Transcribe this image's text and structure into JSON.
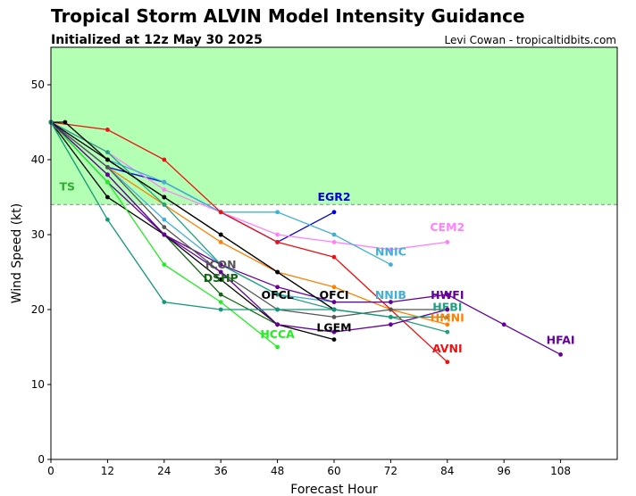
{
  "chart_data": {
    "type": "line",
    "title": "Tropical Storm ALVIN Model Intensity Guidance",
    "subtitle": "Initialized at 12z May 30 2025",
    "credit": "Levi Cowan - tropicaltidbits.com",
    "xlabel": "Forecast Hour",
    "ylabel": "Wind Speed (kt)",
    "xlim": [
      0,
      120
    ],
    "ylim": [
      0,
      55
    ],
    "xticks": [
      0,
      12,
      24,
      36,
      48,
      60,
      72,
      84,
      96,
      108
    ],
    "yticks": [
      0,
      10,
      20,
      30,
      40,
      50
    ],
    "bands": [
      {
        "name": "TS",
        "y0": 34,
        "y1": 55,
        "color": "#b3ffb3",
        "line_color": "#a0a0a0"
      }
    ],
    "series": [
      {
        "name": "EGR2",
        "color": "#0000dd",
        "x": [
          0,
          12,
          24,
          36,
          48,
          60
        ],
        "y": [
          45,
          39,
          37,
          33,
          29,
          33
        ],
        "label_x": 60,
        "label_y": 34.5
      },
      {
        "name": "CEM2",
        "color": "#ff80ff",
        "x": [
          0,
          12,
          24,
          36,
          48,
          60,
          72,
          84
        ],
        "y": [
          45,
          41,
          36,
          33,
          30,
          29,
          28,
          29
        ],
        "label_x": 84,
        "label_y": 30.5
      },
      {
        "name": "NNIC",
        "color": "#40b0d8",
        "x": [
          0,
          12,
          24,
          36,
          48,
          60,
          72
        ],
        "y": [
          45,
          40,
          37,
          33,
          33,
          30,
          26
        ],
        "label_x": 72,
        "label_y": 27.2
      },
      {
        "name": "AVNI",
        "color": "#ee1111",
        "x": [
          0,
          12,
          24,
          36,
          48,
          60,
          72,
          84
        ],
        "y": [
          45,
          44,
          40,
          33,
          29,
          27,
          20,
          13
        ],
        "label_x": 84,
        "label_y": 14.3
      },
      {
        "name": "HMNI",
        "color": "#ff7f00",
        "x": [
          0,
          12,
          24,
          36,
          48,
          60,
          72,
          84
        ],
        "y": [
          45,
          39,
          34,
          29,
          25,
          23,
          20,
          18
        ],
        "label_x": 84,
        "label_y": 18.4
      },
      {
        "name": "NNIB",
        "color": "#40b0d8",
        "x": [
          0,
          12,
          24,
          36,
          48,
          60,
          72
        ],
        "y": [
          45,
          39,
          32,
          26,
          22,
          21,
          21
        ],
        "label_x": 72,
        "label_y": 21.4
      },
      {
        "name": "HFBI",
        "color": "#20a080",
        "x": [
          0,
          12,
          24,
          36,
          48,
          60,
          72,
          84
        ],
        "y": [
          45,
          41,
          34,
          26,
          22,
          20,
          19,
          17
        ],
        "label_x": 84,
        "label_y": 19.8
      },
      {
        "name": "HFAI",
        "color": "#660099",
        "x": [
          0,
          12,
          24,
          36,
          48,
          60,
          72,
          84,
          96,
          108
        ],
        "y": [
          45,
          37,
          30,
          26,
          23,
          21,
          21,
          22,
          18,
          14
        ],
        "label_x": 108,
        "label_y": 15.4
      },
      {
        "name": "ICON",
        "color": "#555555",
        "x": [
          0,
          12,
          24,
          36,
          48,
          60,
          72,
          84
        ],
        "y": [
          45,
          39,
          31,
          25,
          20,
          19,
          20,
          20
        ],
        "label_x": 36,
        "label_y": 25.5
      },
      {
        "name": "DSHP",
        "color": "#116611",
        "x": [
          0,
          12,
          24,
          36,
          48
        ],
        "y": [
          45,
          38,
          30,
          22,
          18
        ],
        "label_x": 36,
        "label_y": 23.7
      },
      {
        "name": "OFCL",
        "color": "#000000",
        "x": [
          0,
          3,
          12,
          24,
          36,
          48,
          60
        ],
        "y": [
          45,
          45,
          40,
          35,
          30,
          25,
          20
        ],
        "label_x": 48,
        "label_y": 21.4
      },
      {
        "name": "OFCI",
        "color": "#000000",
        "x": [
          0,
          12,
          24,
          36,
          48,
          60
        ],
        "y": [
          45,
          40,
          35,
          30,
          25,
          20
        ],
        "label_x": 60,
        "label_y": 21.4
      },
      {
        "name": "LGEM",
        "color": "#000000",
        "x": [
          0,
          12,
          24,
          36,
          48,
          60
        ],
        "y": [
          45,
          35,
          30,
          24,
          18,
          16
        ],
        "label_x": 60,
        "label_y": 17.1
      },
      {
        "name": "HCCA",
        "color": "#22ee22",
        "x": [
          0,
          12,
          24,
          36,
          48
        ],
        "y": [
          45,
          37,
          26,
          21,
          15
        ],
        "label_x": 48,
        "label_y": 16.2
      },
      {
        "name": "HWFI",
        "color": "#660099",
        "x": [
          0,
          12,
          24,
          36,
          48,
          60,
          72,
          84
        ],
        "y": [
          45,
          38,
          30,
          25,
          18,
          17,
          18,
          20
        ],
        "label_x": 84,
        "label_y": 21.4
      },
      {
        "name": "TEAL",
        "color": "#119977",
        "x": [
          0,
          12,
          24,
          36,
          48,
          60,
          72,
          84
        ],
        "y": [
          45,
          32,
          21,
          20,
          20,
          20,
          19,
          19
        ],
        "label_x": null,
        "label_y": null
      }
    ]
  }
}
